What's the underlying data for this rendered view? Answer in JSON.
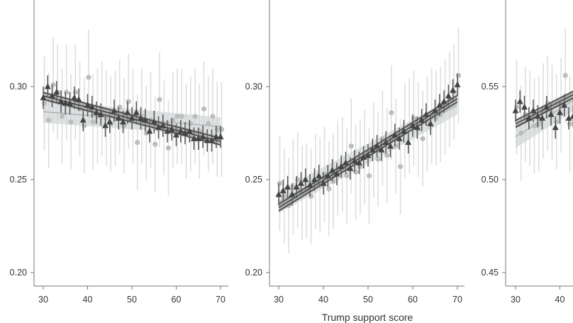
{
  "chart_data": [
    {
      "type": "scatter",
      "xlabel": "",
      "ylabel": "",
      "xlim": [
        28,
        71
      ],
      "ylim": [
        0.193,
        0.345
      ],
      "xticks": [
        "30",
        "40",
        "50",
        "60",
        "70"
      ],
      "yticks": [
        "0.20",
        "0.25",
        "0.30"
      ],
      "ytick_values": [
        0.2,
        0.25,
        0.3
      ],
      "x": [
        30,
        31,
        32,
        33,
        34,
        35,
        36,
        37,
        38,
        39,
        40,
        41,
        42,
        43,
        44,
        45,
        46,
        47,
        48,
        49,
        50,
        51,
        52,
        53,
        54,
        55,
        56,
        57,
        58,
        59,
        60,
        61,
        62,
        63,
        64,
        65,
        66,
        67,
        68,
        69,
        70
      ],
      "series": [
        {
          "name": "triangles",
          "marker": "triangle",
          "color": "#444444",
          "err": 0.006,
          "fit": [
            0.295,
            0.2705
          ],
          "values": [
            0.294,
            0.3,
            0.295,
            0.297,
            0.292,
            0.291,
            0.291,
            0.294,
            0.293,
            0.282,
            0.29,
            0.289,
            0.286,
            0.285,
            0.279,
            0.281,
            0.287,
            0.283,
            0.281,
            0.286,
            0.283,
            0.286,
            0.283,
            0.282,
            0.276,
            0.281,
            0.278,
            0.279,
            0.276,
            0.277,
            0.274,
            0.276,
            0.275,
            0.276,
            0.272,
            0.272,
            0.273,
            0.271,
            0.271,
            0.273,
            0.273
          ]
        },
        {
          "name": "circles",
          "marker": "circle",
          "color": "#bdbdbd",
          "err": 0.016,
          "fit": [
            0.2865,
            0.2785
          ],
          "values": [
            0.291,
            0.282,
            0.301,
            0.297,
            0.284,
            0.297,
            0.281,
            0.297,
            0.288,
            0.279,
            0.305,
            0.281,
            0.284,
            0.288,
            0.283,
            0.28,
            0.283,
            0.289,
            0.279,
            0.292,
            0.284,
            0.27,
            0.284,
            0.275,
            0.282,
            0.269,
            0.293,
            0.278,
            0.267,
            0.282,
            0.284,
            0.284,
            0.276,
            0.28,
            0.284,
            0.276,
            0.288,
            0.28,
            0.284,
            0.277,
            0.277
          ]
        }
      ]
    },
    {
      "type": "scatter",
      "xlabel": "Trump support score",
      "ylabel": "",
      "xlim": [
        28,
        71
      ],
      "ylim": [
        0.193,
        0.345
      ],
      "xticks": [
        "30",
        "40",
        "50",
        "60",
        "70"
      ],
      "yticks": [
        "0.20",
        "0.25",
        "0.30"
      ],
      "ytick_values": [
        0.2,
        0.25,
        0.3
      ],
      "x": [
        30,
        31,
        32,
        33,
        34,
        35,
        36,
        37,
        38,
        39,
        40,
        41,
        42,
        43,
        44,
        45,
        46,
        47,
        48,
        49,
        50,
        51,
        52,
        53,
        54,
        55,
        56,
        57,
        58,
        59,
        60,
        61,
        62,
        63,
        64,
        65,
        66,
        67,
        68,
        69,
        70
      ],
      "series": [
        {
          "name": "triangles",
          "marker": "triangle",
          "color": "#444444",
          "err": 0.006,
          "fit": [
            0.235,
            0.2935
          ],
          "values": [
            0.242,
            0.244,
            0.246,
            0.242,
            0.246,
            0.248,
            0.25,
            0.247,
            0.25,
            0.252,
            0.248,
            0.252,
            0.255,
            0.253,
            0.257,
            0.259,
            0.256,
            0.26,
            0.259,
            0.262,
            0.263,
            0.266,
            0.268,
            0.266,
            0.27,
            0.268,
            0.274,
            0.272,
            0.276,
            0.27,
            0.279,
            0.278,
            0.282,
            0.285,
            0.28,
            0.287,
            0.29,
            0.292,
            0.295,
            0.298,
            0.301
          ]
        },
        {
          "name": "circles",
          "marker": "circle",
          "color": "#bdbdbd",
          "err": 0.016,
          "fit": [
            0.238,
            0.29
          ],
          "values": [
            0.248,
            0.241,
            0.236,
            0.246,
            0.25,
            0.243,
            0.244,
            0.241,
            0.249,
            0.247,
            0.253,
            0.245,
            0.249,
            0.256,
            0.258,
            0.252,
            0.268,
            0.254,
            0.257,
            0.262,
            0.252,
            0.266,
            0.261,
            0.272,
            0.263,
            0.286,
            0.268,
            0.257,
            0.276,
            0.279,
            0.283,
            0.277,
            0.272,
            0.28,
            0.284,
            0.283,
            0.285,
            0.289,
            0.293,
            0.297,
            0.306
          ]
        }
      ]
    },
    {
      "type": "scatter",
      "xlabel": "",
      "ylabel": "",
      "xlim": [
        28,
        71
      ],
      "ylim": [
        0.443,
        0.595
      ],
      "xticks": [
        "30",
        "40"
      ],
      "yticks": [
        "0.45",
        "0.50",
        "0.55"
      ],
      "ytick_values": [
        0.45,
        0.5,
        0.55
      ],
      "x": [
        30,
        31,
        32,
        33,
        34,
        35,
        36,
        37,
        38,
        39,
        40,
        41,
        42,
        43
      ],
      "series": [
        {
          "name": "triangles",
          "marker": "triangle",
          "color": "#444444",
          "err": 0.006,
          "fit": [
            0.53,
            0.578
          ],
          "values": [
            0.537,
            0.542,
            0.539,
            0.533,
            0.537,
            0.534,
            0.533,
            0.539,
            0.535,
            0.528,
            0.536,
            0.54,
            0.533,
            0.534
          ]
        },
        {
          "name": "circles",
          "marker": "circle",
          "color": "#bdbdbd",
          "err": 0.016,
          "fit": [
            0.523,
            0.583
          ],
          "values": [
            0.539,
            0.525,
            0.535,
            0.533,
            0.529,
            0.53,
            0.537,
            0.541,
            0.536,
            0.531,
            0.54,
            0.556,
            0.53,
            0.542
          ]
        }
      ]
    }
  ]
}
